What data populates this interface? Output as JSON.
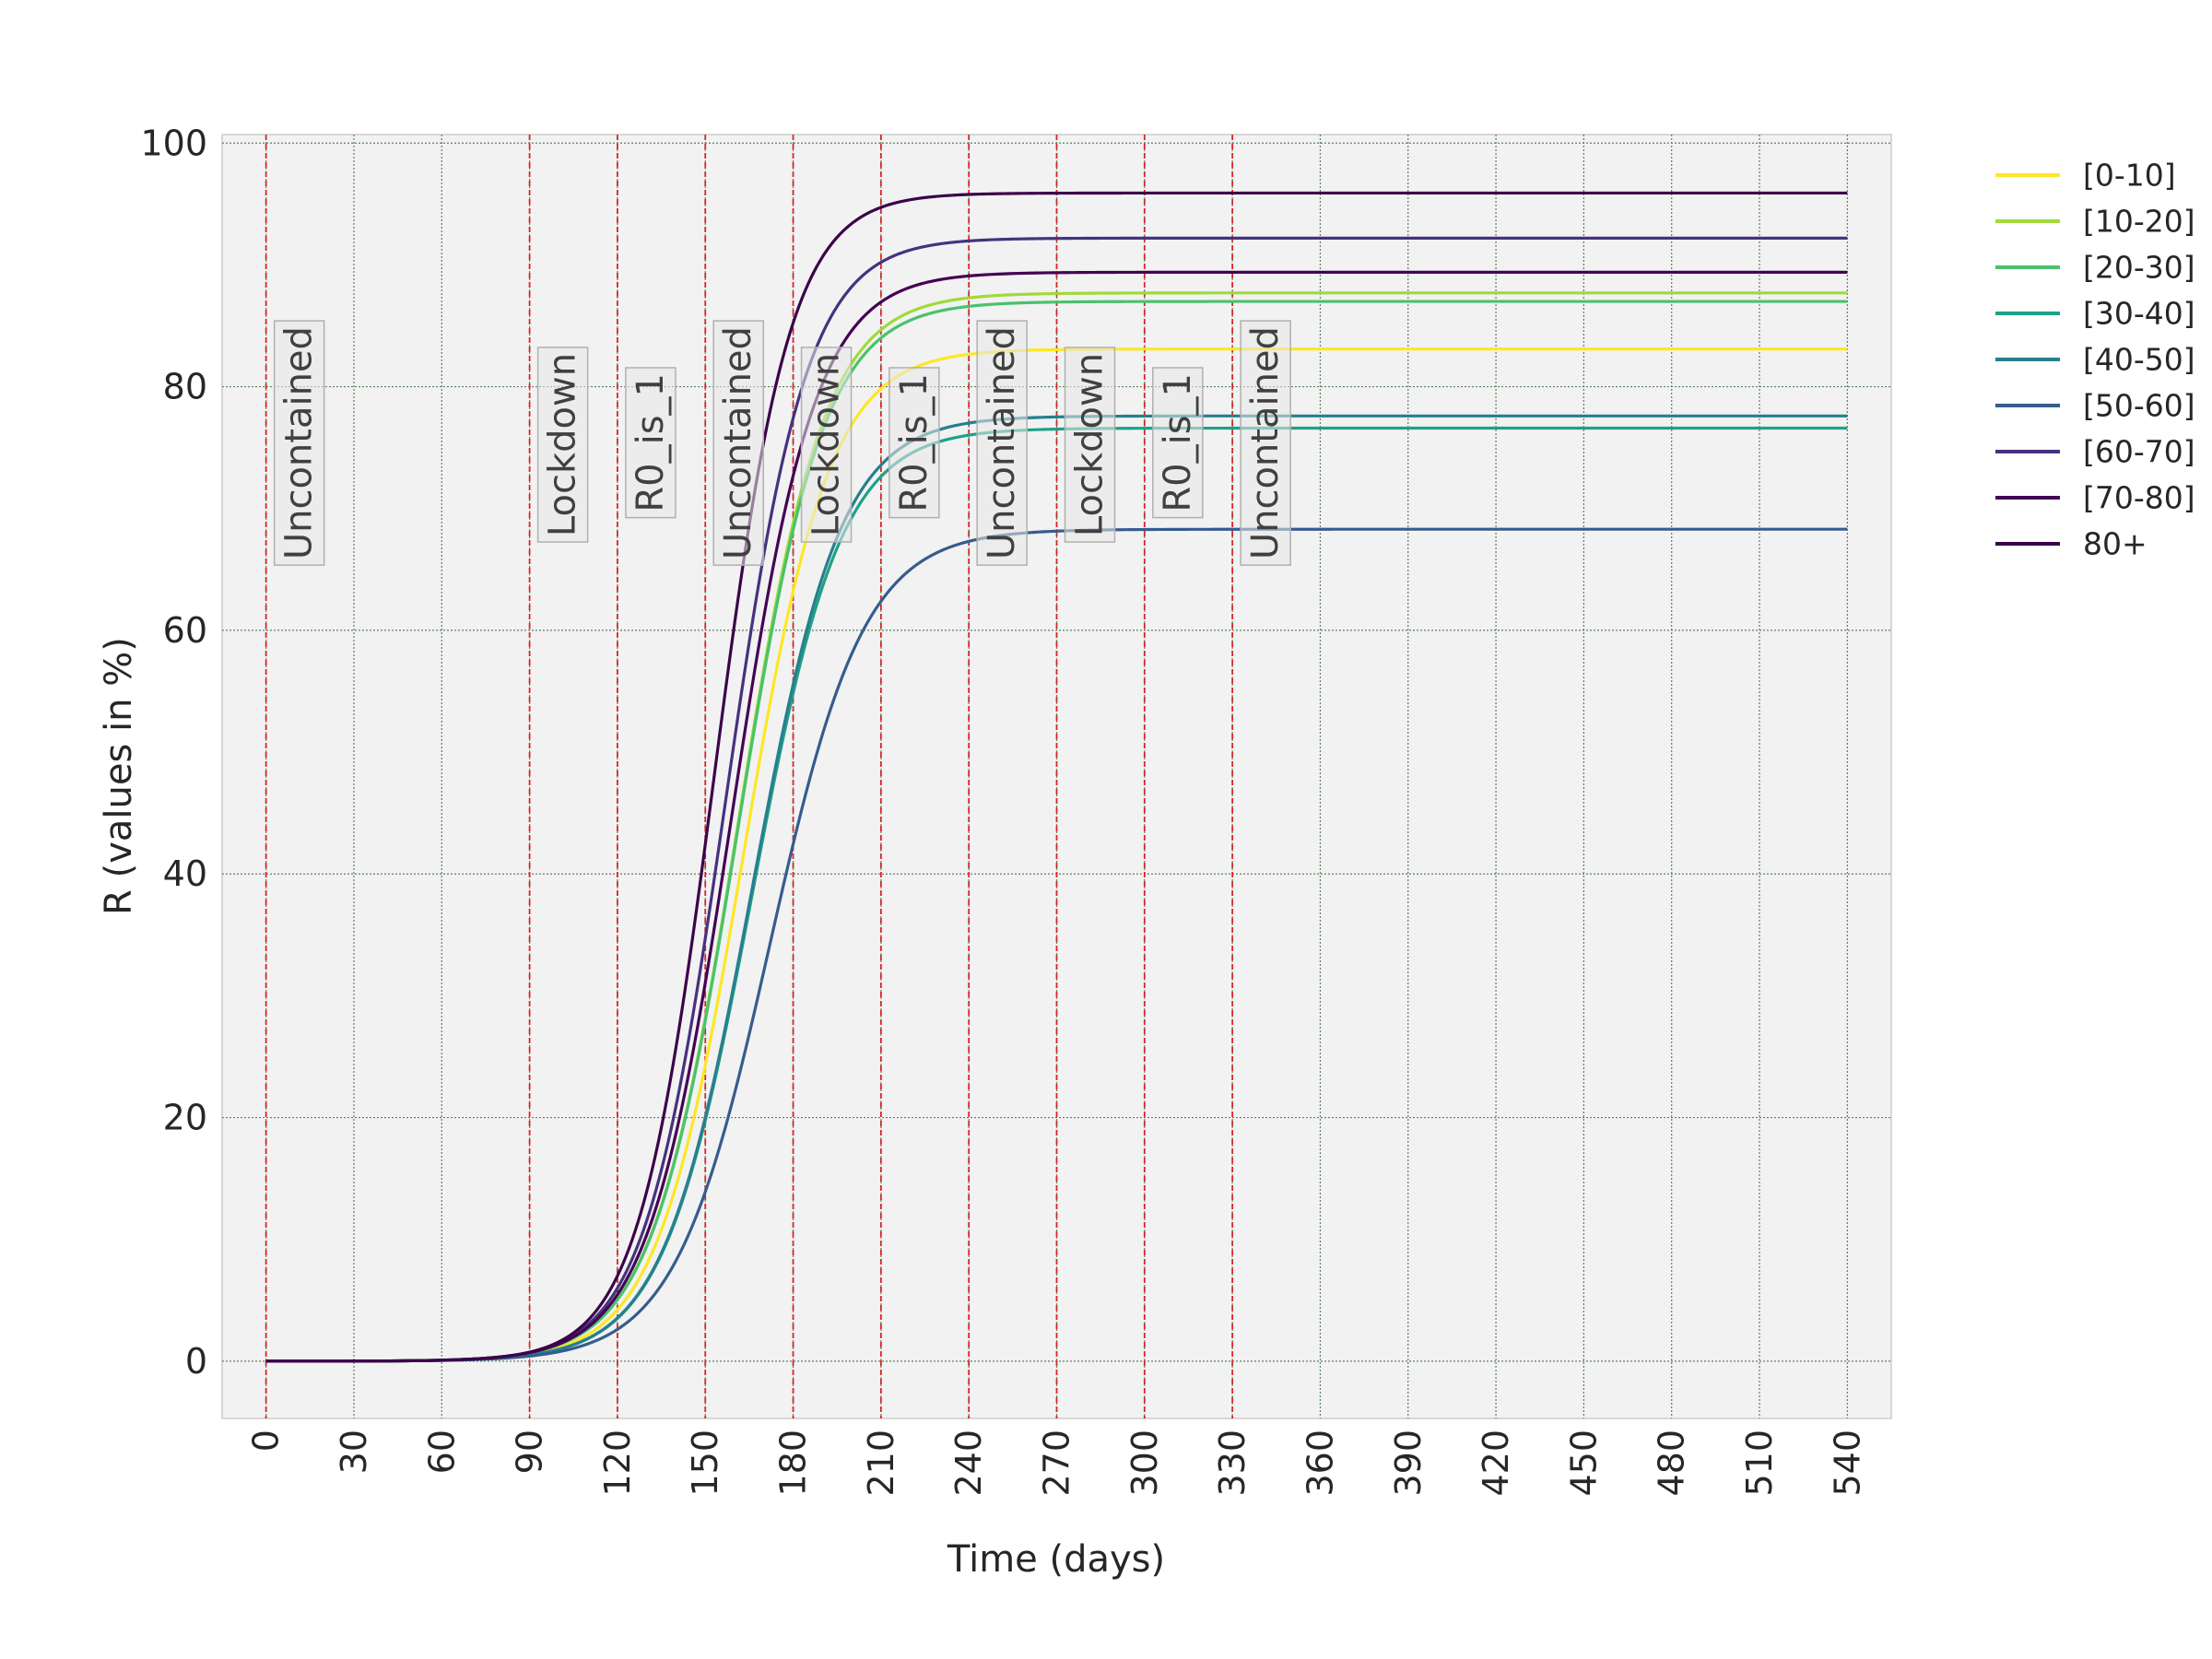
{
  "chart_data": {
    "type": "line",
    "xlabel": "Time (days)",
    "ylabel": "R (values in %)",
    "xlim": [
      -15,
      555
    ],
    "ylim": [
      -4.7,
      100.7
    ],
    "xticks": [
      0,
      30,
      60,
      90,
      120,
      150,
      180,
      210,
      240,
      270,
      300,
      330,
      360,
      390,
      420,
      450,
      480,
      510,
      540
    ],
    "yticks": [
      0,
      20,
      40,
      60,
      80,
      100
    ],
    "grid": true,
    "legend_position": "outside-right-top",
    "x_end": 540,
    "series": [
      {
        "name": "[0-10]",
        "color": "#fde725",
        "final": 83.1,
        "midpoint": 163,
        "steepness": 0.068
      },
      {
        "name": "[10-20]",
        "color": "#a0da39",
        "final": 87.7,
        "midpoint": 161,
        "steepness": 0.068
      },
      {
        "name": "[20-30]",
        "color": "#4ac16d",
        "final": 87.0,
        "midpoint": 161,
        "steepness": 0.068
      },
      {
        "name": "[30-40]",
        "color": "#1fa187",
        "final": 76.6,
        "midpoint": 166,
        "steepness": 0.066
      },
      {
        "name": "[40-50]",
        "color": "#277f8e",
        "final": 77.6,
        "midpoint": 166,
        "steepness": 0.066
      },
      {
        "name": "[50-60]",
        "color": "#365c8d",
        "final": 68.3,
        "midpoint": 172,
        "steepness": 0.062
      },
      {
        "name": "[60-70]",
        "color": "#46327e",
        "final": 92.2,
        "midpoint": 157,
        "steepness": 0.072
      },
      {
        "name": "[70-80]",
        "color": "#440154",
        "final": 89.4,
        "midpoint": 159,
        "steepness": 0.07
      },
      {
        "name": "80+",
        "color": "#3b0348",
        "final": 95.9,
        "midpoint": 153,
        "steepness": 0.077
      }
    ],
    "phase_lines": [
      0,
      90,
      120,
      150,
      180,
      210,
      240,
      270,
      300,
      330
    ],
    "phase_line_color": "#d62728",
    "annotations": [
      {
        "text": "Uncontained",
        "x": 0
      },
      {
        "text": "Lockdown",
        "x": 90
      },
      {
        "text": "R0_is_1",
        "x": 120
      },
      {
        "text": "Uncontained",
        "x": 150
      },
      {
        "text": "Lockdown",
        "x": 180
      },
      {
        "text": "R0_is_1",
        "x": 210
      },
      {
        "text": "Uncontained",
        "x": 240
      },
      {
        "text": "Lockdown",
        "x": 270
      },
      {
        "text": "R0_is_1",
        "x": 300
      },
      {
        "text": "Uncontained",
        "x": 330
      }
    ]
  }
}
